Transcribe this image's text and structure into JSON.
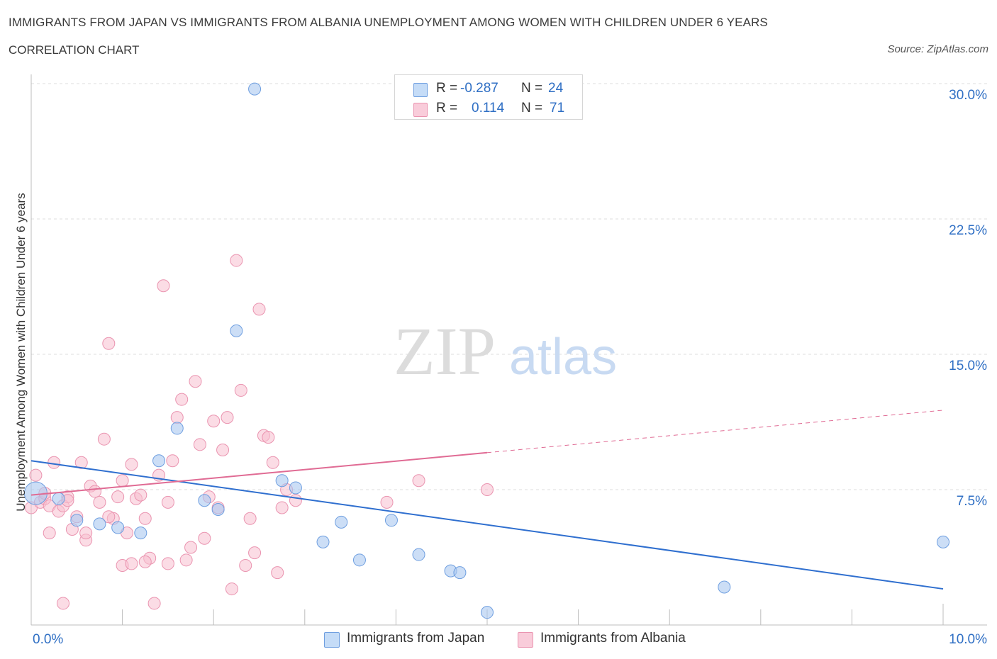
{
  "title": "IMMIGRANTS FROM JAPAN VS IMMIGRANTS FROM ALBANIA UNEMPLOYMENT AMONG WOMEN WITH CHILDREN UNDER 6 YEARS",
  "subtitle": "CORRELATION CHART",
  "source": "Source: ZipAtlas.com",
  "watermark": {
    "zip": "ZIP",
    "atlas": "atlas"
  },
  "legend": {
    "japan": {
      "r_label": "R =",
      "r_value": "-0.287",
      "n_label": "N =",
      "n_value": "24"
    },
    "albania": {
      "r_label": "R =",
      "r_value": "0.114",
      "n_label": "N =",
      "n_value": "71"
    }
  },
  "colors": {
    "japan_fill": "#aac8f0",
    "japan_stroke": "#6f9fe0",
    "japan_line": "#2f6fcf",
    "albania_fill": "#f7bfd0",
    "albania_stroke": "#ea94b0",
    "albania_line": "#e06b94",
    "axis_text": "#2f6fc4",
    "grid": "#dcdcdc"
  },
  "chart_data": {
    "type": "scatter",
    "xlabel": "",
    "ylabel": "Unemployment Among Women with Children Under 6 years",
    "xlim": [
      0,
      10
    ],
    "ylim": [
      0,
      30
    ],
    "x_tick_labels": [
      "0.0%",
      "10.0%"
    ],
    "y_ticks": [
      7.5,
      15.0,
      22.5,
      30.0
    ],
    "y_tick_labels": [
      "7.5%",
      "15.0%",
      "22.5%",
      "30.0%"
    ],
    "grid": true,
    "legend_placement": "top-center",
    "series": [
      {
        "name": "Immigrants from Japan",
        "R": -0.287,
        "N": 24,
        "points": [
          [
            0.05,
            7.3
          ],
          [
            0.3,
            7.0
          ],
          [
            0.5,
            5.8
          ],
          [
            0.75,
            5.6
          ],
          [
            0.95,
            5.4
          ],
          [
            1.2,
            5.1
          ],
          [
            1.4,
            9.1
          ],
          [
            1.6,
            10.9
          ],
          [
            1.9,
            6.9
          ],
          [
            2.05,
            6.4
          ],
          [
            2.25,
            16.3
          ],
          [
            2.45,
            29.7
          ],
          [
            2.75,
            8.0
          ],
          [
            2.9,
            7.6
          ],
          [
            3.2,
            4.6
          ],
          [
            3.4,
            5.7
          ],
          [
            3.6,
            3.6
          ],
          [
            3.95,
            5.8
          ],
          [
            4.25,
            3.9
          ],
          [
            4.6,
            3.0
          ],
          [
            4.7,
            2.9
          ],
          [
            5.0,
            0.7
          ],
          [
            7.6,
            2.1
          ],
          [
            10.0,
            4.6
          ]
        ],
        "trend": {
          "x": [
            0,
            10
          ],
          "y": [
            9.1,
            2.0
          ],
          "solid_until": 10
        }
      },
      {
        "name": "Immigrants from Albania",
        "R": 0.114,
        "N": 71,
        "points": [
          [
            0.0,
            6.5
          ],
          [
            0.05,
            8.3
          ],
          [
            0.1,
            6.8
          ],
          [
            0.15,
            7.0
          ],
          [
            0.2,
            5.1
          ],
          [
            0.2,
            6.6
          ],
          [
            0.25,
            9.0
          ],
          [
            0.3,
            6.3
          ],
          [
            0.35,
            6.6
          ],
          [
            0.4,
            7.1
          ],
          [
            0.4,
            6.9
          ],
          [
            0.45,
            5.3
          ],
          [
            0.5,
            6.0
          ],
          [
            0.55,
            9.0
          ],
          [
            0.6,
            4.7
          ],
          [
            0.65,
            7.7
          ],
          [
            0.7,
            7.4
          ],
          [
            0.75,
            6.8
          ],
          [
            0.8,
            10.3
          ],
          [
            0.85,
            15.6
          ],
          [
            0.9,
            5.9
          ],
          [
            0.95,
            7.1
          ],
          [
            1.0,
            3.3
          ],
          [
            1.05,
            5.1
          ],
          [
            1.1,
            8.9
          ],
          [
            1.15,
            7.0
          ],
          [
            1.2,
            7.2
          ],
          [
            1.25,
            5.9
          ],
          [
            1.3,
            3.7
          ],
          [
            1.35,
            1.2
          ],
          [
            1.4,
            8.3
          ],
          [
            1.45,
            18.8
          ],
          [
            1.5,
            6.8
          ],
          [
            1.55,
            9.1
          ],
          [
            1.6,
            11.5
          ],
          [
            1.65,
            12.5
          ],
          [
            1.7,
            3.6
          ],
          [
            1.75,
            4.3
          ],
          [
            1.8,
            13.5
          ],
          [
            1.85,
            10.0
          ],
          [
            1.9,
            4.8
          ],
          [
            1.95,
            7.1
          ],
          [
            2.0,
            11.3
          ],
          [
            2.05,
            6.5
          ],
          [
            2.1,
            9.7
          ],
          [
            2.15,
            11.5
          ],
          [
            2.2,
            2.0
          ],
          [
            2.25,
            20.2
          ],
          [
            2.3,
            13.0
          ],
          [
            2.35,
            3.3
          ],
          [
            2.4,
            5.9
          ],
          [
            2.45,
            4.0
          ],
          [
            2.5,
            17.5
          ],
          [
            2.55,
            10.5
          ],
          [
            2.6,
            10.4
          ],
          [
            2.65,
            9.0
          ],
          [
            2.7,
            2.9
          ],
          [
            2.75,
            6.5
          ],
          [
            2.8,
            7.5
          ],
          [
            2.9,
            6.9
          ],
          [
            0.35,
            1.2
          ],
          [
            1.0,
            8.0
          ],
          [
            0.6,
            5.1
          ],
          [
            1.1,
            3.4
          ],
          [
            1.5,
            3.4
          ],
          [
            0.15,
            7.3
          ],
          [
            3.9,
            6.8
          ],
          [
            4.25,
            8.0
          ],
          [
            5.0,
            7.5
          ],
          [
            0.85,
            6.0
          ],
          [
            1.25,
            3.5
          ]
        ],
        "trend": {
          "x": [
            0,
            10
          ],
          "y": [
            7.2,
            11.9
          ],
          "solid_until": 5.0
        }
      }
    ]
  }
}
